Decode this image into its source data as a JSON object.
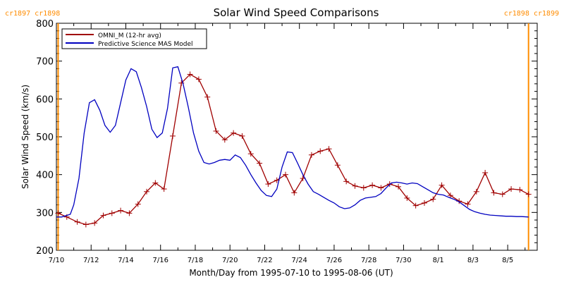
{
  "chart_data": {
    "type": "line",
    "title": "Solar Wind Speed Comparisons",
    "xlabel": "Month/Day from 1995-07-10 to 1995-08-06 (UT)",
    "ylabel": "Solar Wind Speed (km/s)",
    "ylim": [
      200,
      800
    ],
    "y_ticks": [
      200,
      300,
      400,
      500,
      600,
      700,
      800
    ],
    "x_ticks": [
      {
        "label": "7/10",
        "x": 0
      },
      {
        "label": "7/12",
        "x": 2
      },
      {
        "label": "7/14",
        "x": 4
      },
      {
        "label": "7/16",
        "x": 6
      },
      {
        "label": "7/18",
        "x": 8
      },
      {
        "label": "7/20",
        "x": 10
      },
      {
        "label": "7/22",
        "x": 12
      },
      {
        "label": "7/24",
        "x": 14
      },
      {
        "label": "7/26",
        "x": 16
      },
      {
        "label": "7/28",
        "x": 18
      },
      {
        "label": "7/30",
        "x": 20
      },
      {
        "label": "8/1",
        "x": 22
      },
      {
        "label": "8/3",
        "x": 24
      },
      {
        "label": "8/5",
        "x": 26
      }
    ],
    "xlim": [
      0,
      27.7
    ],
    "carrington_markers": [
      {
        "label_left": "cr1897",
        "label_right": "cr1898",
        "x": 0.1,
        "side": "left"
      },
      {
        "label_left": "cr1898",
        "label_right": "cr1899",
        "x": 27.2,
        "side": "right"
      }
    ],
    "legend": {
      "placement": "top-left"
    },
    "series": [
      {
        "name": "OMNI_M (12-hr avg)",
        "color": "#a00000",
        "marker": "plus",
        "x": [
          0.1,
          0.6,
          1.2,
          1.7,
          2.2,
          2.7,
          3.2,
          3.7,
          4.2,
          4.7,
          5.2,
          5.7,
          6.2,
          6.7,
          7.2,
          7.7,
          8.2,
          8.7,
          9.2,
          9.7,
          10.2,
          10.7,
          11.2,
          11.7,
          12.2,
          12.7,
          13.2,
          13.7,
          14.2,
          14.7,
          15.2,
          15.7,
          16.2,
          16.7,
          17.2,
          17.7,
          18.2,
          18.7,
          19.2,
          19.7,
          20.2,
          20.7,
          21.2,
          21.7,
          22.2,
          22.7,
          23.2,
          23.7,
          24.2,
          24.7,
          25.2,
          25.7,
          26.2,
          26.7,
          27.2
        ],
        "values": [
          298,
          288,
          275,
          268,
          272,
          292,
          298,
          305,
          298,
          322,
          355,
          378,
          362,
          502,
          642,
          665,
          652,
          605,
          515,
          492,
          510,
          502,
          455,
          430,
          375,
          385,
          400,
          352,
          390,
          452,
          462,
          468,
          425,
          382,
          370,
          365,
          372,
          365,
          375,
          368,
          338,
          318,
          325,
          335,
          372,
          345,
          330,
          322,
          355,
          405,
          352,
          348,
          362,
          360,
          348
        ]
      },
      {
        "name": "Predictive Science MAS Model",
        "color": "#0000c0",
        "marker": "none",
        "x": [
          0,
          0.3,
          0.8,
          1.0,
          1.3,
          1.6,
          1.9,
          2.2,
          2.5,
          2.8,
          3.1,
          3.4,
          3.7,
          4.0,
          4.3,
          4.6,
          4.9,
          5.2,
          5.5,
          5.8,
          6.1,
          6.4,
          6.7,
          7.0,
          7.3,
          7.6,
          7.9,
          8.2,
          8.5,
          8.8,
          9.1,
          9.4,
          9.7,
          10.0,
          10.3,
          10.6,
          10.9,
          11.2,
          11.5,
          11.8,
          12.1,
          12.4,
          12.7,
          13.0,
          13.3,
          13.6,
          13.9,
          14.2,
          14.5,
          14.8,
          15.1,
          15.4,
          15.7,
          16.0,
          16.3,
          16.6,
          16.9,
          17.2,
          17.5,
          17.8,
          18.1,
          18.4,
          18.7,
          19.0,
          19.3,
          19.6,
          19.9,
          20.2,
          20.5,
          20.8,
          21.1,
          21.4,
          21.7,
          22.0,
          22.3,
          22.6,
          22.9,
          23.2,
          23.5,
          23.8,
          24.1,
          24.4,
          24.7,
          25.0,
          25.3,
          25.6,
          25.9,
          26.2,
          26.5,
          26.8,
          27.2
        ],
        "values": [
          288,
          288,
          295,
          320,
          390,
          510,
          590,
          598,
          570,
          530,
          512,
          530,
          590,
          650,
          680,
          672,
          630,
          580,
          520,
          498,
          510,
          575,
          682,
          685,
          640,
          578,
          510,
          462,
          432,
          428,
          432,
          438,
          440,
          438,
          452,
          445,
          425,
          400,
          378,
          358,
          345,
          342,
          362,
          420,
          460,
          458,
          430,
          400,
          375,
          355,
          348,
          340,
          332,
          325,
          315,
          310,
          312,
          320,
          332,
          338,
          340,
          342,
          350,
          365,
          378,
          380,
          378,
          375,
          378,
          376,
          368,
          360,
          352,
          348,
          346,
          340,
          335,
          328,
          318,
          308,
          302,
          298,
          295,
          293,
          292,
          291,
          290,
          290,
          289,
          289,
          288
        ]
      }
    ]
  }
}
